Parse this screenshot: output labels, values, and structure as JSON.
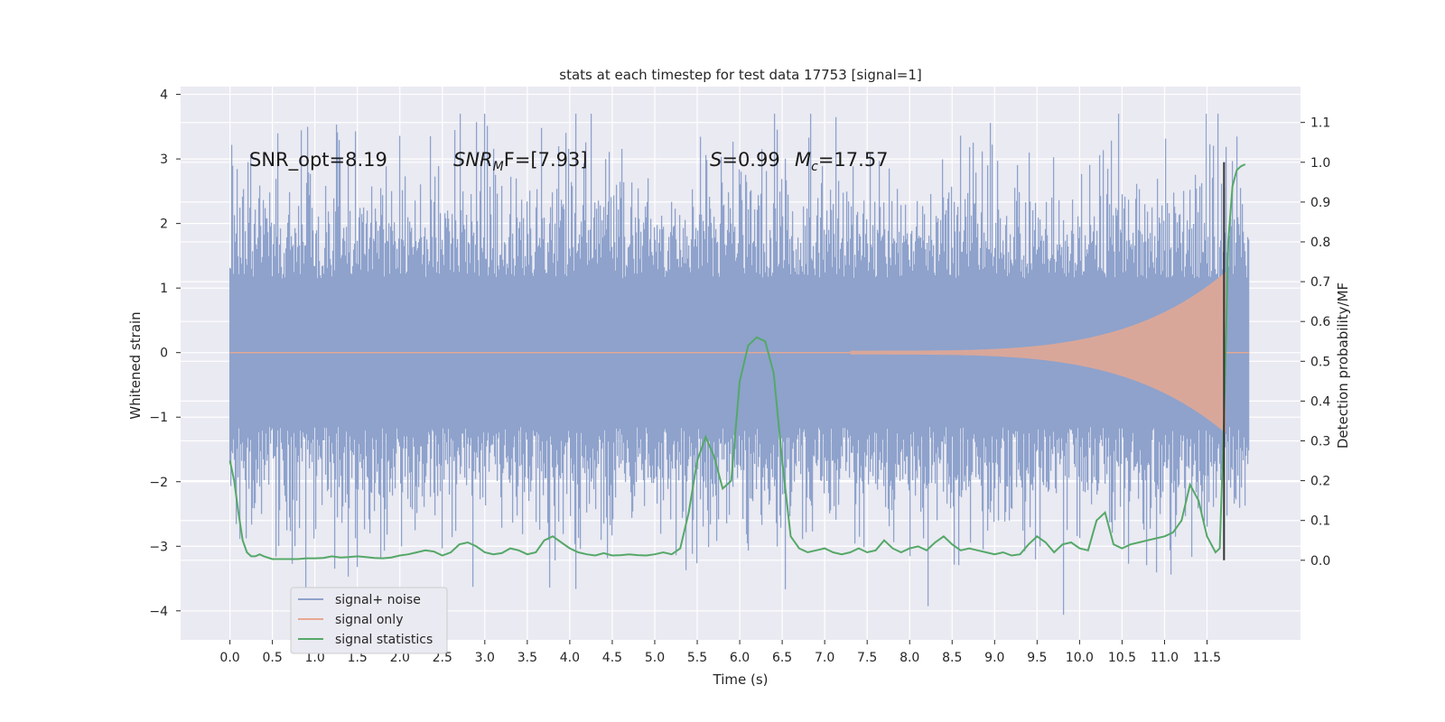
{
  "chart_data": {
    "type": "line",
    "title": "stats at each timestep for test data 17753 [signal=1]",
    "xlabel": "Time (s)",
    "ylabel": "Whitened strain",
    "y2label": "Detection probability/MF",
    "xlim": [
      -0.58,
      12.6
    ],
    "ylim": [
      -4.45,
      4.12
    ],
    "y2lim": [
      -0.2,
      1.19
    ],
    "grid": true,
    "legend_position": "lower-left",
    "x_ticks": [
      "0.0",
      "0.5",
      "1.0",
      "1.5",
      "2.0",
      "2.5",
      "3.0",
      "3.5",
      "4.0",
      "4.5",
      "5.0",
      "5.5",
      "6.0",
      "6.5",
      "7.0",
      "7.5",
      "8.0",
      "8.5",
      "9.0",
      "9.5",
      "10.0",
      "10.5",
      "11.0",
      "11.5"
    ],
    "y_ticks": [
      "4",
      "3",
      "2",
      "1",
      "0",
      "−1",
      "−2",
      "−3",
      "−4"
    ],
    "y_tick_values": [
      4,
      3,
      2,
      1,
      0,
      -1,
      -2,
      -3,
      -4
    ],
    "y2_ticks": [
      "1.1",
      "1.0",
      "0.9",
      "0.8",
      "0.7",
      "0.6",
      "0.5",
      "0.4",
      "0.3",
      "0.2",
      "0.1",
      "0.0"
    ],
    "y2_tick_values": [
      1.1,
      1.0,
      0.9,
      0.8,
      0.7,
      0.6,
      0.5,
      0.4,
      0.3,
      0.2,
      0.1,
      0.0
    ],
    "annotations": {
      "snr_opt": "SNR_opt=8.19",
      "snr_mf_label": "SNR",
      "snr_mf_sub": "M",
      "snr_mf_rest": "F=[7.93]",
      "s_label": "S",
      "s_value": "=0.99",
      "mc_label": "M",
      "mc_sub": "c",
      "mc_value": "=17.57"
    },
    "series": [
      {
        "name": "signal+ noise",
        "color": "#8ea2cc",
        "axis": "left",
        "x_range": [
          0.0,
          12.0
        ],
        "typical_amplitude": 1.1,
        "peak_max": 3.7,
        "peak_min": -4.1
      },
      {
        "name": "signal only",
        "color": "#e6a891",
        "axis": "left",
        "x_range": [
          0.0,
          12.0
        ],
        "chirp_onset": 7.3,
        "merger_time": 11.72,
        "peak_amplitude": 1.25
      },
      {
        "name": "signal statistics",
        "color": "#55a868",
        "axis": "right",
        "x": [
          0.0,
          0.05,
          0.1,
          0.15,
          0.2,
          0.25,
          0.3,
          0.35,
          0.4,
          0.5,
          0.6,
          0.7,
          0.8,
          0.9,
          1.0,
          1.1,
          1.2,
          1.3,
          1.4,
          1.5,
          1.6,
          1.7,
          1.8,
          1.9,
          2.0,
          2.1,
          2.2,
          2.3,
          2.4,
          2.5,
          2.6,
          2.7,
          2.8,
          2.9,
          3.0,
          3.1,
          3.2,
          3.3,
          3.4,
          3.5,
          3.6,
          3.7,
          3.8,
          3.9,
          4.0,
          4.1,
          4.2,
          4.3,
          4.4,
          4.5,
          4.6,
          4.7,
          4.8,
          4.9,
          5.0,
          5.1,
          5.2,
          5.3,
          5.4,
          5.5,
          5.6,
          5.7,
          5.8,
          5.9,
          6.0,
          6.1,
          6.2,
          6.3,
          6.4,
          6.5,
          6.6,
          6.7,
          6.8,
          6.9,
          7.0,
          7.1,
          7.2,
          7.3,
          7.4,
          7.5,
          7.6,
          7.7,
          7.8,
          7.9,
          8.0,
          8.1,
          8.2,
          8.3,
          8.4,
          8.5,
          8.6,
          8.7,
          8.8,
          8.9,
          9.0,
          9.1,
          9.2,
          9.3,
          9.4,
          9.5,
          9.6,
          9.7,
          9.8,
          9.9,
          10.0,
          10.1,
          10.2,
          10.3,
          10.4,
          10.5,
          10.6,
          10.7,
          10.8,
          10.9,
          11.0,
          11.1,
          11.2,
          11.3,
          11.4,
          11.5,
          11.6,
          11.65,
          11.7,
          11.75,
          11.8,
          11.85,
          11.9,
          11.95
        ],
        "values": [
          0.25,
          0.2,
          0.12,
          0.05,
          0.02,
          0.01,
          0.01,
          0.015,
          0.01,
          0.003,
          0.003,
          0.003,
          0.003,
          0.005,
          0.005,
          0.006,
          0.01,
          0.007,
          0.008,
          0.01,
          0.008,
          0.006,
          0.005,
          0.007,
          0.012,
          0.015,
          0.02,
          0.025,
          0.022,
          0.012,
          0.02,
          0.04,
          0.045,
          0.035,
          0.02,
          0.015,
          0.018,
          0.03,
          0.025,
          0.015,
          0.02,
          0.05,
          0.06,
          0.045,
          0.03,
          0.02,
          0.015,
          0.012,
          0.018,
          0.012,
          0.013,
          0.015,
          0.013,
          0.012,
          0.015,
          0.02,
          0.015,
          0.03,
          0.12,
          0.25,
          0.31,
          0.26,
          0.18,
          0.2,
          0.45,
          0.54,
          0.56,
          0.55,
          0.47,
          0.25,
          0.06,
          0.03,
          0.02,
          0.025,
          0.03,
          0.02,
          0.015,
          0.02,
          0.03,
          0.02,
          0.025,
          0.05,
          0.03,
          0.02,
          0.03,
          0.035,
          0.025,
          0.045,
          0.06,
          0.04,
          0.025,
          0.03,
          0.025,
          0.02,
          0.015,
          0.02,
          0.012,
          0.015,
          0.04,
          0.06,
          0.045,
          0.02,
          0.04,
          0.045,
          0.03,
          0.025,
          0.1,
          0.12,
          0.04,
          0.03,
          0.04,
          0.045,
          0.05,
          0.055,
          0.06,
          0.07,
          0.1,
          0.19,
          0.15,
          0.06,
          0.02,
          0.03,
          0.35,
          0.8,
          0.94,
          0.98,
          0.99,
          0.995
        ]
      }
    ],
    "marker_line": {
      "x": 11.7,
      "color": "#333333"
    }
  }
}
